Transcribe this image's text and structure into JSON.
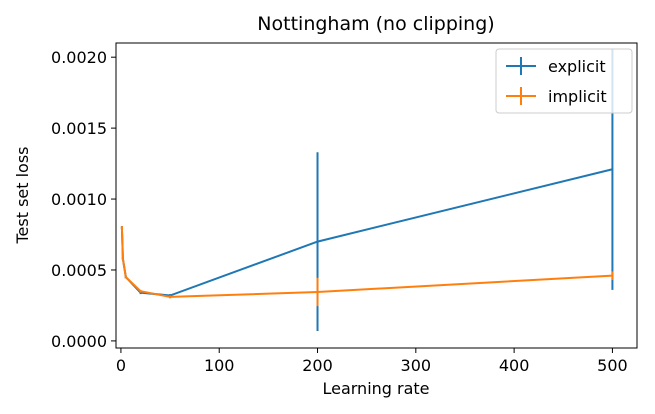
{
  "chart_data": {
    "type": "line",
    "title": "Nottingham (no clipping)",
    "xlabel": "Learning rate",
    "ylabel": "Test set loss",
    "xlim": [
      -5,
      525
    ],
    "ylim": [
      -5e-05,
      0.0021
    ],
    "xticks": [
      0,
      100,
      200,
      300,
      400,
      500
    ],
    "xtick_labels": [
      "0",
      "100",
      "200",
      "300",
      "400",
      "500"
    ],
    "yticks": [
      0.0,
      0.0005,
      0.001,
      0.0015,
      0.002
    ],
    "ytick_labels": [
      "0.0000",
      "0.0005",
      "0.0010",
      "0.0015",
      "0.0020"
    ],
    "grid": false,
    "legend": "top-right",
    "error_bars": true,
    "series": [
      {
        "name": "explicit",
        "color": "#1f77b4",
        "x": [
          1,
          2,
          5,
          20,
          50,
          200,
          500
        ],
        "y": [
          0.0008,
          0.00058,
          0.00045,
          0.00034,
          0.00032,
          0.0007,
          0.00121
        ],
        "yerr": [
          1e-05,
          1e-05,
          1e-05,
          1e-05,
          1e-05,
          0.00063,
          0.00085
        ]
      },
      {
        "name": "implicit",
        "color": "#ff7f0e",
        "x": [
          1,
          2,
          5,
          20,
          50,
          200,
          500
        ],
        "y": [
          0.0008,
          0.00058,
          0.00045,
          0.00035,
          0.00031,
          0.000345,
          0.00046
        ],
        "yerr": [
          1e-05,
          1e-05,
          1e-05,
          1e-05,
          1e-05,
          0.0001,
          3e-05
        ]
      }
    ]
  }
}
